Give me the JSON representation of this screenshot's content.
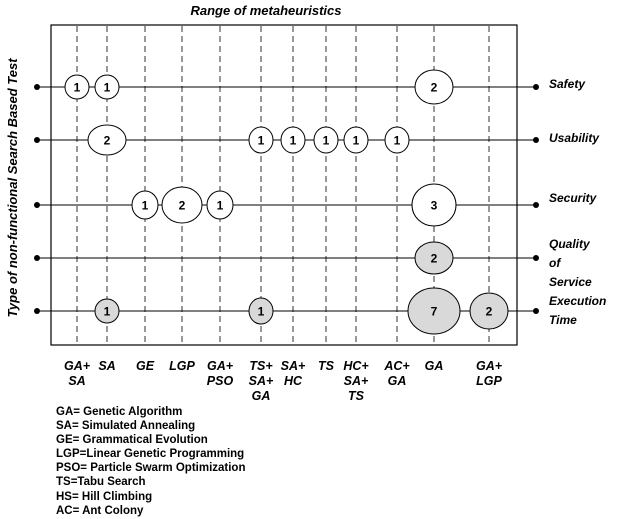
{
  "title": "Range of metaheuristics",
  "y_axis_label": "Type of non-functional Search Based Test",
  "categories": [
    [
      "GA+",
      "SA"
    ],
    [
      "SA"
    ],
    [
      "GE"
    ],
    [
      "LGP"
    ],
    [
      "GA+",
      "PSO"
    ],
    [
      "TS+",
      "SA+",
      "GA"
    ],
    [
      "SA+",
      "HC"
    ],
    [
      "TS"
    ],
    [
      "HC+",
      "SA+",
      "TS"
    ],
    [
      "AC+",
      "GA"
    ],
    [
      "GA"
    ],
    [
      "GA+",
      "LGP"
    ]
  ],
  "rows": [
    {
      "label": [
        "Safety"
      ],
      "bubbles": [
        {
          "col": 0,
          "value": "1",
          "shaded": false
        },
        {
          "col": 1,
          "value": "1",
          "shaded": false
        },
        {
          "col": 10,
          "value": "2",
          "shaded": false
        }
      ]
    },
    {
      "label": [
        "Usability"
      ],
      "bubbles": [
        {
          "col": 1,
          "value": "2",
          "shaded": false
        },
        {
          "col": 5,
          "value": "1",
          "shaded": false
        },
        {
          "col": 6,
          "value": "1",
          "shaded": false
        },
        {
          "col": 7,
          "value": "1",
          "shaded": false
        },
        {
          "col": 8,
          "value": "1",
          "shaded": false
        },
        {
          "col": 9,
          "value": "1",
          "shaded": false
        }
      ]
    },
    {
      "label": [
        "Security"
      ],
      "bubbles": [
        {
          "col": 2,
          "value": "1",
          "shaded": false
        },
        {
          "col": 3,
          "value": "2",
          "shaded": false
        },
        {
          "col": 4,
          "value": "1",
          "shaded": false
        },
        {
          "col": 10,
          "value": "3",
          "shaded": false
        }
      ]
    },
    {
      "label": [
        "Quality",
        "of",
        "Service"
      ],
      "bubbles": [
        {
          "col": 10,
          "value": "2",
          "shaded": true
        }
      ]
    },
    {
      "label": [
        "Execution",
        "Time"
      ],
      "bubbles": [
        {
          "col": 1,
          "value": "1",
          "shaded": true
        },
        {
          "col": 5,
          "value": "1",
          "shaded": true
        },
        {
          "col": 10,
          "value": "7",
          "shaded": true
        },
        {
          "col": 11,
          "value": "2",
          "shaded": true
        }
      ]
    }
  ],
  "legend": [
    "GA= Genetic Algorithm",
    "SA= Simulated Annealing",
    "GE= Grammatical Evolution",
    "LGP=Linear Genetic Programming",
    "PSO= Particle Swarm Optimization",
    "TS=Tabu Search",
    "HS= Hill Climbing",
    "AC= Ant Colony"
  ],
  "colors": {
    "line": "#000000",
    "bubble_fill": "#ffffff",
    "bubble_shaded": "#d9d9d9"
  }
}
